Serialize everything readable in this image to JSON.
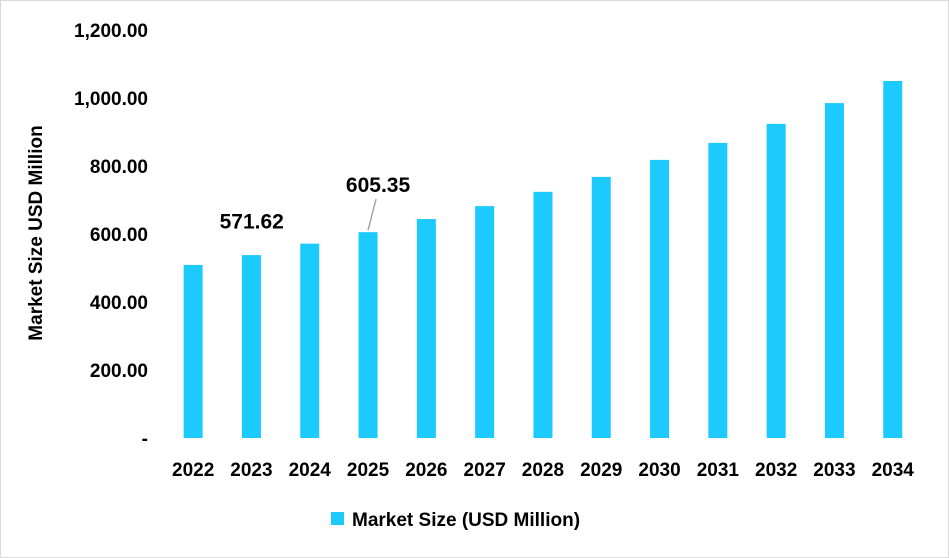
{
  "chart_data": {
    "type": "bar",
    "title": "",
    "xlabel": "",
    "ylabel": "Market Size USD Million",
    "ylim": [
      0,
      1200
    ],
    "yticks": [
      0,
      200,
      400,
      600,
      800,
      1000,
      1200
    ],
    "ytick_labels": [
      "-",
      "200.00",
      "400.00",
      "600.00",
      "800.00",
      "1,000.00",
      "1,200.00"
    ],
    "categories": [
      "2022",
      "2023",
      "2024",
      "2025",
      "2026",
      "2027",
      "2028",
      "2029",
      "2030",
      "2031",
      "2032",
      "2033",
      "2034"
    ],
    "series": [
      {
        "name": "Market Size (USD Million)",
        "color": "#1CCAFE",
        "values": [
          509,
          538,
          571.62,
          605.35,
          644,
          682,
          724,
          768,
          818,
          868,
          924,
          985,
          1050
        ]
      }
    ],
    "data_labels": [
      {
        "category": "2024",
        "text": "571.62"
      },
      {
        "category": "2025",
        "text": "605.35"
      }
    ],
    "grid": false,
    "legend": "bottom"
  }
}
